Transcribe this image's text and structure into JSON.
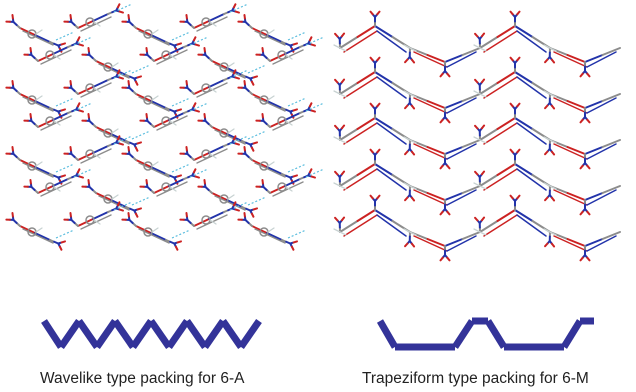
{
  "panels": [
    {
      "id": "left",
      "caption": "Wavelike type packing for 6-A",
      "schematic_shape": "zigzag",
      "schematic_color": "#333399"
    },
    {
      "id": "right",
      "caption": "Trapeziform type packing for 6-M",
      "schematic_shape": "trapezoid-wave",
      "schematic_color": "#333399"
    }
  ],
  "atom_colors": {
    "carbon": "#8c8c8c",
    "hydrogen": "#c8d2d2",
    "oxygen": "#cc2222",
    "nitrogen": "#2233aa",
    "h_bond": "#55bbdd"
  }
}
